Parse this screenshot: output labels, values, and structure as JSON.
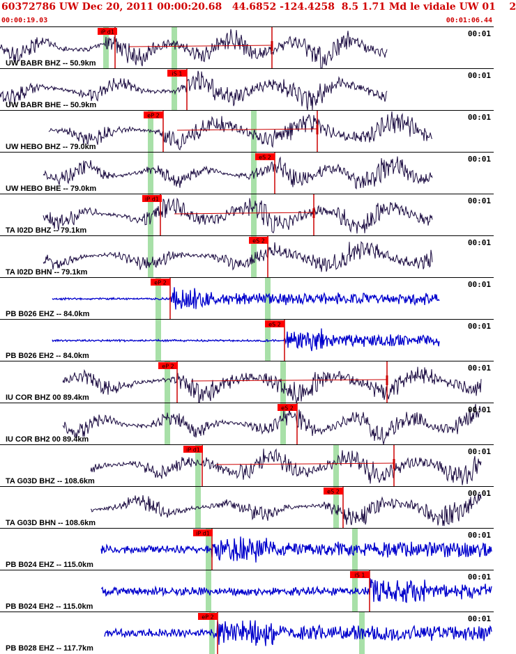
{
  "header": {
    "title": "60372786 UW Dec 20, 2011 00:00:20.68   44.6852 -124.4258  8.5 1.71 Md le vidale UW 01    2",
    "start_time": "00:00:19.03",
    "end_time": "00:01:06.44"
  },
  "colors": {
    "header_text": "#d00000",
    "pick_box": "#ff0000",
    "pick_line": "#cc0000",
    "window_band": "#a8e0a8",
    "trace_broadband": "#1a0a40",
    "trace_strong_motion": "#0000cc"
  },
  "traces": [
    {
      "station": "UW BABR BHZ -- 50.9km",
      "scale": "00:01",
      "pick": "iP d1",
      "color": "trace_broadband"
    },
    {
      "station": "UW BABR BHE -- 50.9km",
      "scale": "00:01",
      "pick": "iS 1",
      "color": "trace_broadband"
    },
    {
      "station": "UW HEBO BHZ -- 79.0km",
      "scale": "00:01",
      "pick": "eP 2",
      "color": "trace_broadband"
    },
    {
      "station": "UW HEBO BHE -- 79.0km",
      "scale": "00:01",
      "pick": "eS 2",
      "color": "trace_broadband"
    },
    {
      "station": "TA I02D BHZ -- 79.1km",
      "scale": "00:01",
      "pick": "iP d1",
      "color": "trace_broadband"
    },
    {
      "station": "TA I02D BHN -- 79.1km",
      "scale": "00:01",
      "pick": "eS 2",
      "color": "trace_broadband"
    },
    {
      "station": "PB B026 EHZ -- 84.0km",
      "scale": "00:01",
      "pick": "eP 2",
      "color": "trace_strong_motion"
    },
    {
      "station": "PB B026 EH2 -- 84.0km",
      "scale": "00:01",
      "pick": "eS 2",
      "color": "trace_strong_motion"
    },
    {
      "station": "IU COR BHZ 00 89.4km",
      "scale": "00:01",
      "pick": "eP 2",
      "color": "trace_broadband"
    },
    {
      "station": "IU COR BH2 00 89.4km",
      "scale": "00:01",
      "pick": "eS 2",
      "color": "trace_broadband"
    },
    {
      "station": "TA G03D BHZ -- 108.6km",
      "scale": "00:01",
      "pick": "iP d1",
      "color": "trace_broadband"
    },
    {
      "station": "TA G03D BHN -- 108.6km",
      "scale": "00:01",
      "pick": "eS 2",
      "color": "trace_broadband"
    },
    {
      "station": "PB B024 EHZ -- 115.0km",
      "scale": "00:01",
      "pick": "iP d1",
      "color": "trace_strong_motion"
    },
    {
      "station": "PB B024 EH2 -- 115.0km",
      "scale": "00:01",
      "pick": "iS 1",
      "color": "trace_strong_motion"
    },
    {
      "station": "PB B028 EHZ -- 117.7km",
      "scale": "00:01",
      "pick": "eP 2",
      "color": "trace_strong_motion"
    }
  ]
}
